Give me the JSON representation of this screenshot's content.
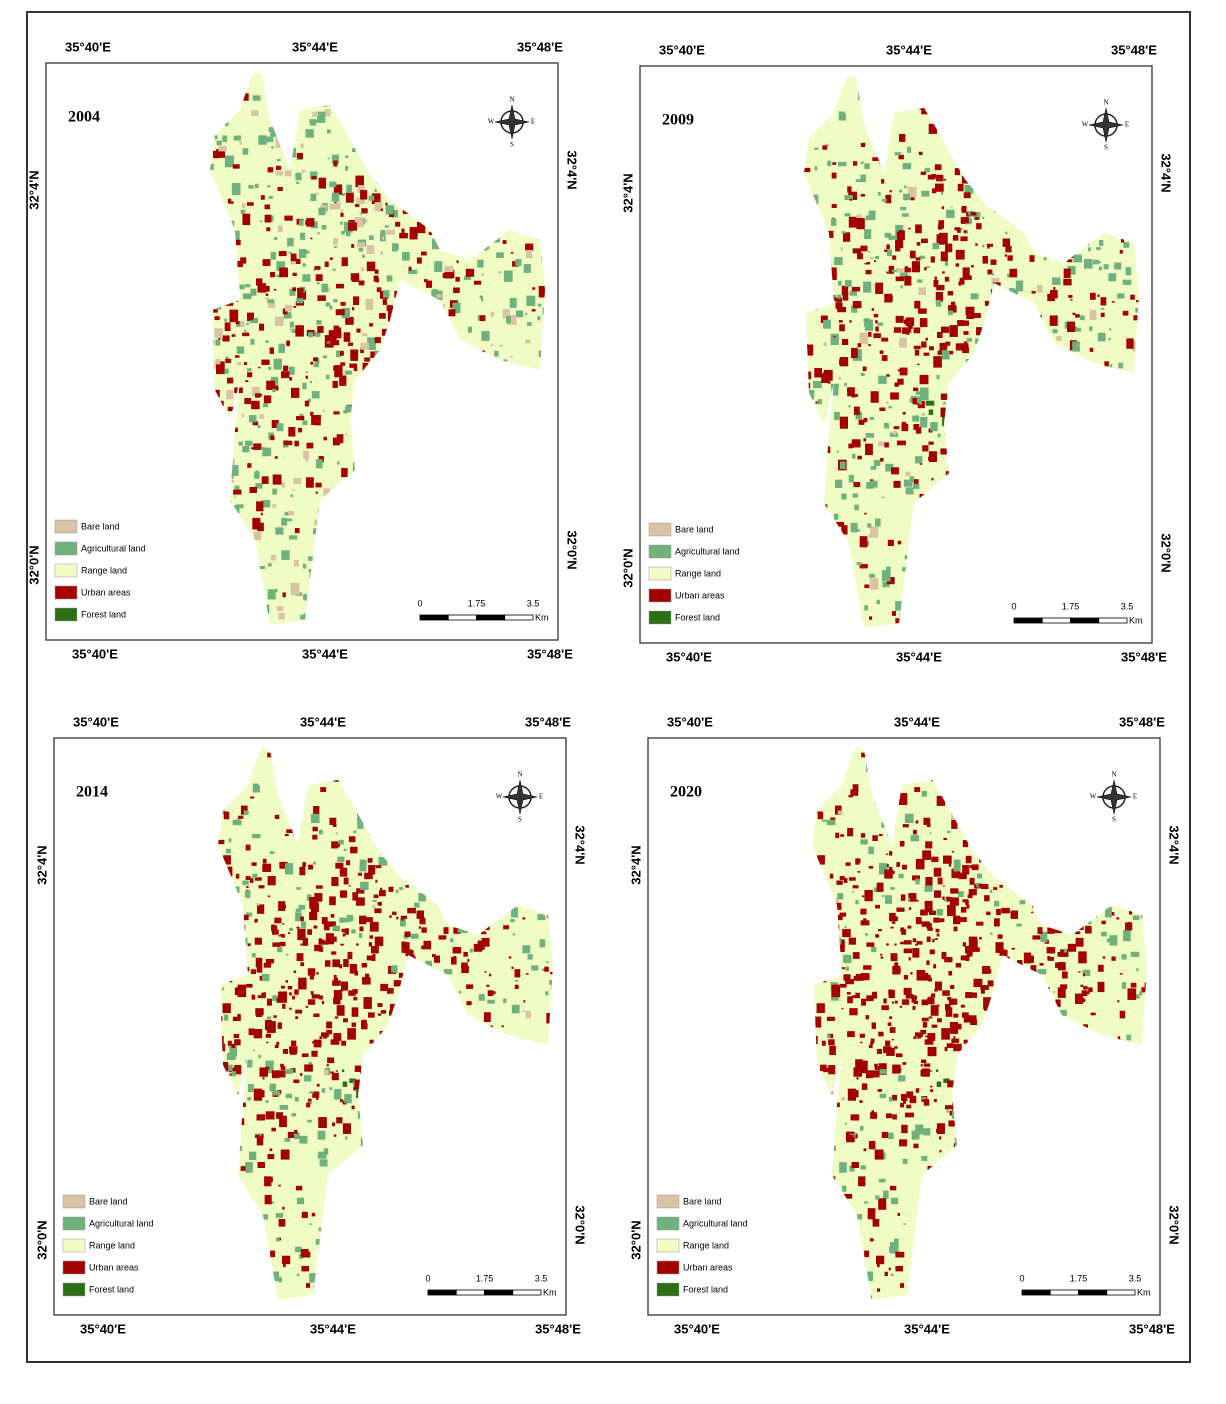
{
  "panels": [
    {
      "year": "2004"
    },
    {
      "year": "2009"
    },
    {
      "year": "2014"
    },
    {
      "year": "2020"
    }
  ],
  "longitude_labels": [
    "35°40'E",
    "35°44'E",
    "35°48'E"
  ],
  "latitude_labels": [
    "32°4'N",
    "32°0'N"
  ],
  "legend": [
    {
      "label": "Bare land",
      "color": "#d8c3a4"
    },
    {
      "label": "Agricultural land",
      "color": "#6fb07c"
    },
    {
      "label": "Range land",
      "color": "#effcc4"
    },
    {
      "label": "Urban areas",
      "color": "#a30000"
    },
    {
      "label": "Forest land",
      "color": "#2b6e16"
    }
  ],
  "scale_bar": {
    "ticks": [
      "0",
      "1.75",
      "3.5"
    ],
    "unit": "Km"
  },
  "compass": {
    "north": "N",
    "east": "E",
    "south": "S",
    "west": "W"
  }
}
